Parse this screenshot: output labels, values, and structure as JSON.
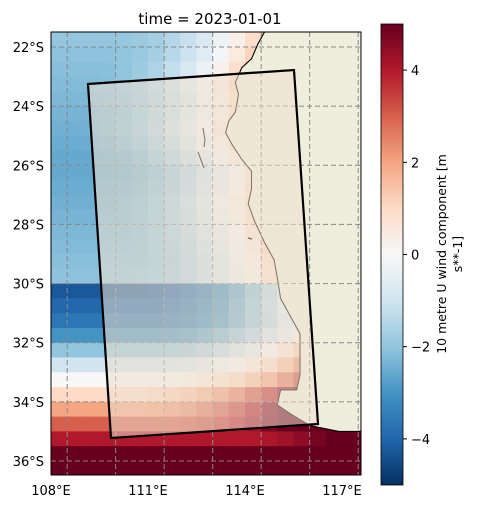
{
  "title": "time = 2023-01-01",
  "map": {
    "lon_range": [
      108,
      118.5
    ],
    "lat_range": [
      -36.5,
      -21.5
    ],
    "lon_ticks": [
      108,
      111,
      114,
      117
    ],
    "lat_ticks": [
      -22,
      -24,
      -26,
      -28,
      -30,
      -32,
      -34,
      -36
    ],
    "lon_tick_labels": [
      "108°E",
      "111°E",
      "114°E",
      "117°E"
    ],
    "lat_tick_labels": [
      "22°S",
      "24°S",
      "26°S",
      "28°S",
      "30°S",
      "32°S",
      "34°S",
      "36°S"
    ],
    "gridlines": "dashed grey",
    "ocean_field": "10 metre U wind component, ~0.5° grid, blue (negative) offshore north, red (positive) in the south",
    "land_color": "#efe9dc",
    "study_box_corners_lonlat": [
      [
        109.2,
        -23.3
      ],
      [
        116.5,
        -22.8
      ],
      [
        117.0,
        -34.7
      ],
      [
        110.2,
        -35.2
      ]
    ],
    "study_box_fill": "rgba(238,224,205,0.55)"
  },
  "colorbar": {
    "label_line1": "10 metre U wind component [m",
    "label_line2": "s**-1]",
    "range": [
      -5,
      5
    ],
    "ticks": [
      -4,
      -2,
      0,
      2,
      4
    ],
    "tick_labels": [
      "−4",
      "−2",
      "0",
      "2",
      "4"
    ],
    "colormap": "RdBu_r"
  }
}
